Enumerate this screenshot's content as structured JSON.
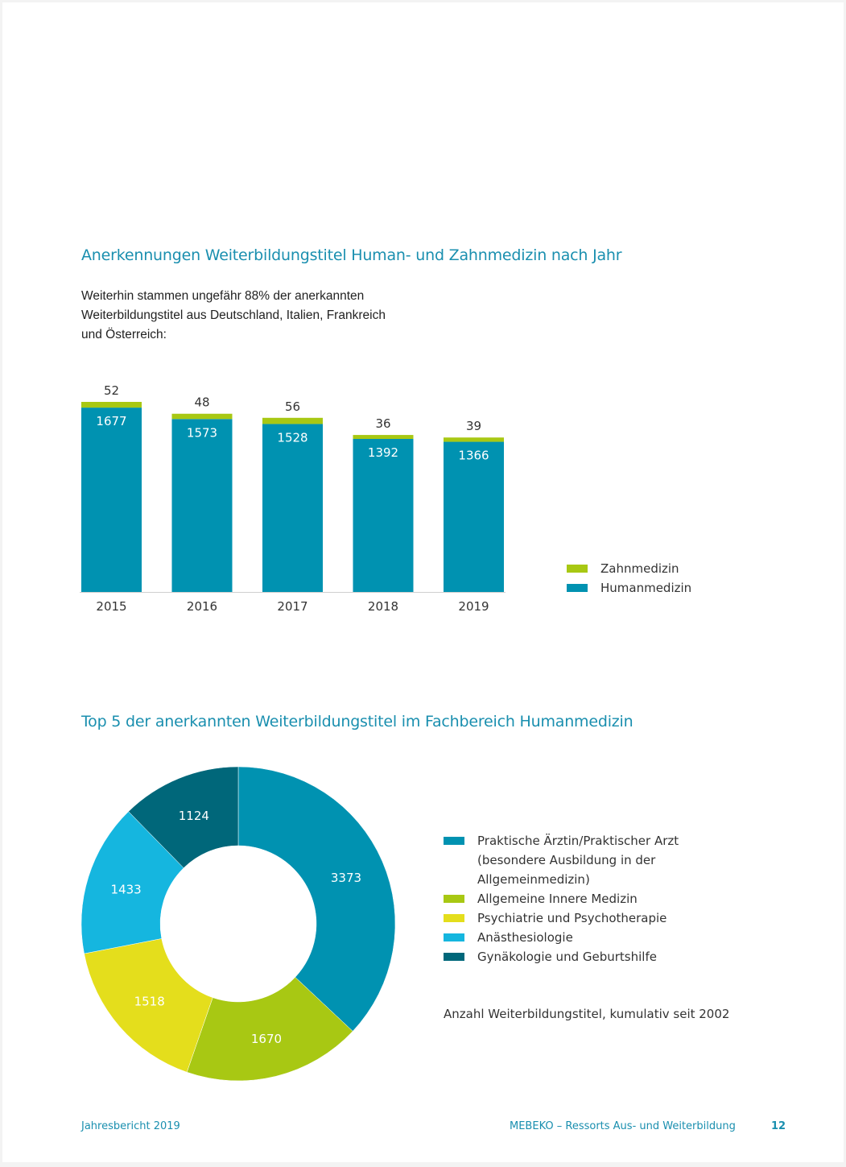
{
  "section1": {
    "title": "Anerkennungen Weiterbildungstitel Human- und Zahnmedizin nach Jahr",
    "intro_lines": [
      "Weiterhin stammen ungefähr 88% der anerkannten",
      "Weiterbildungstitel aus Deutschland, Italien, Frankreich",
      "und Österreich:"
    ]
  },
  "section2": {
    "title": "Top 5 der anerkannten Weiterbildungstitel im Fachbereich Humanmedizin",
    "note": "Anzahl Weiterbildungstitel, kumulativ seit 2002"
  },
  "chart_data": [
    {
      "type": "bar",
      "stacked": true,
      "categories": [
        "2015",
        "2016",
        "2017",
        "2018",
        "2019"
      ],
      "series": [
        {
          "name": "Humanmedizin",
          "values": [
            1677,
            1573,
            1528,
            1392,
            1366
          ],
          "color": "#0092b1"
        },
        {
          "name": "Zahnmedizin",
          "values": [
            52,
            48,
            56,
            36,
            39
          ],
          "color": "#a8c813"
        }
      ],
      "legend": [
        "Zahnmedizin",
        "Humanmedizin"
      ],
      "legend_placement": "right",
      "title": "Anerkennungen Weiterbildungstitel Human- und Zahnmedizin nach Jahr",
      "xlabel": "",
      "ylabel": "",
      "ylim": [
        0,
        1729
      ]
    },
    {
      "type": "pie",
      "donut": true,
      "title": "Top 5 der anerkannten Weiterbildungstitel im Fachbereich Humanmedizin",
      "slices": [
        {
          "label": "Praktische Ärztin/Praktischer Arzt (besondere Ausbildung in der Allgemeinmedizin)",
          "value": 3373,
          "color": "#0092b1"
        },
        {
          "label": "Allgemeine Innere Medizin",
          "value": 1670,
          "color": "#a8c813"
        },
        {
          "label": "Psychiatrie und Psychotherapie",
          "value": 1518,
          "color": "#e4de1c"
        },
        {
          "label": "Anästhesiologie",
          "value": 1433,
          "color": "#15b6df"
        },
        {
          "label": "Gynäkologie und Geburtshilfe",
          "value": 1124,
          "color": "#00677a"
        }
      ],
      "legend_lines": [
        {
          "text": "Praktische Ärztin/Praktischer Arzt",
          "color": "#0092b1"
        },
        {
          "text": "(besondere Ausbildung in der",
          "color": null
        },
        {
          "text": "Allgemeinmedizin)",
          "color": null
        },
        {
          "text": "Allgemeine Innere Medizin",
          "color": "#a8c813"
        },
        {
          "text": "Psychiatrie und Psychotherapie",
          "color": "#e4de1c"
        },
        {
          "text": "Anästhesiologie",
          "color": "#15b6df"
        },
        {
          "text": "Gynäkologie und Geburtshilfe",
          "color": "#00677a"
        }
      ]
    }
  ],
  "footer": {
    "left": "Jahresbericht 2019",
    "center": "MEBEKO – Ressorts Aus- und Weiterbildung",
    "page": "12"
  },
  "colors": {
    "accent": "#1a8faf",
    "human": "#0092b1",
    "zahn": "#a8c813"
  }
}
